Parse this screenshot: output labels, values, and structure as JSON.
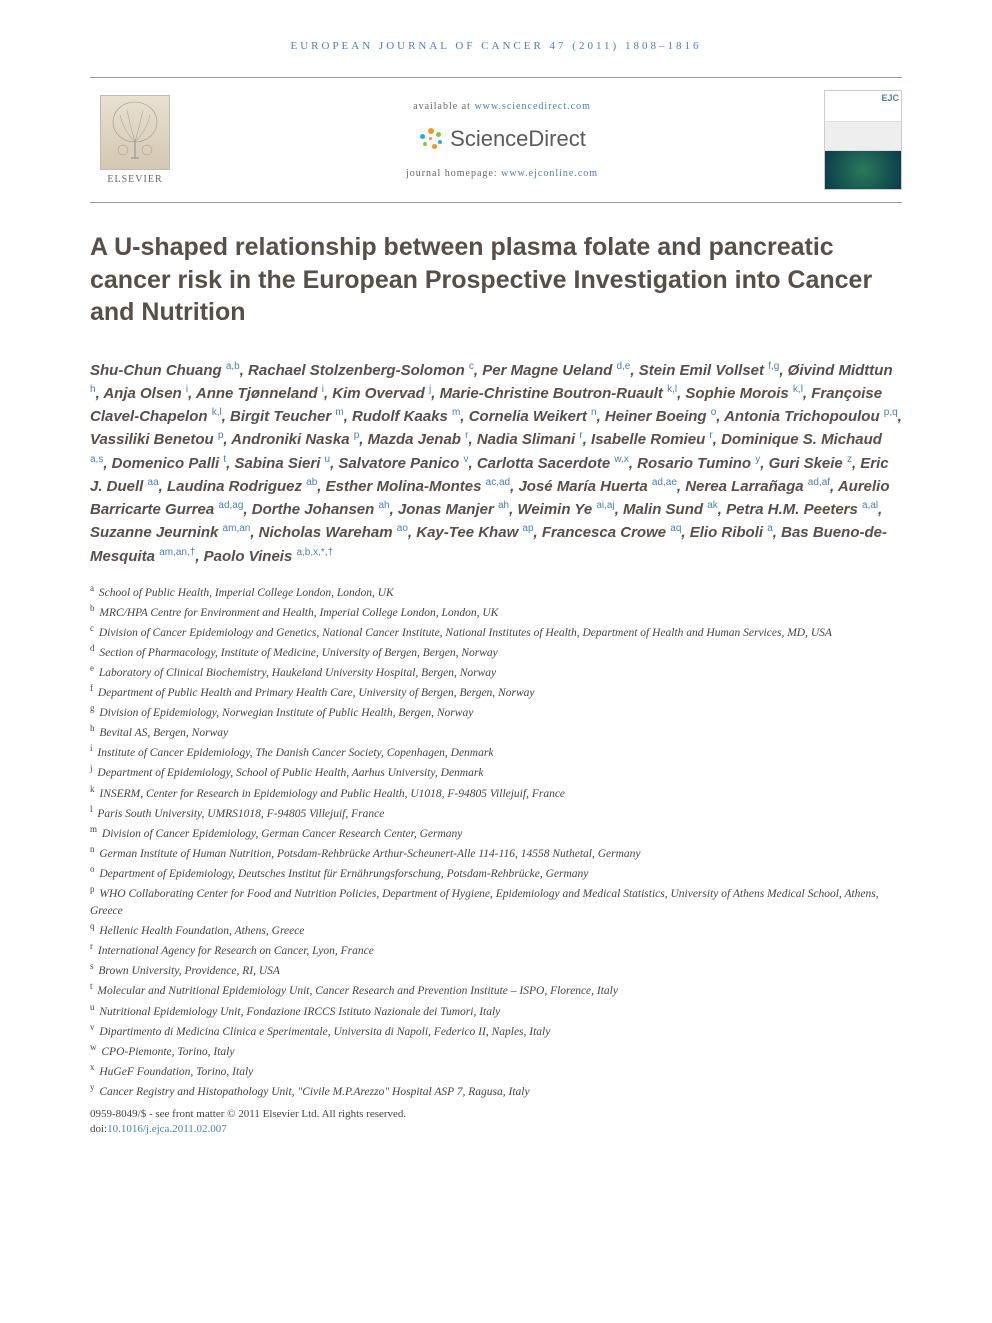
{
  "header": {
    "citation": "EUROPEAN JOURNAL OF CANCER 47 (2011) 1808–1816",
    "available_prefix": "available at ",
    "available_url": "www.sciencedirect.com",
    "sciencedirect_label": "ScienceDirect",
    "homepage_prefix": "journal homepage: ",
    "homepage_url": "www.ejconline.com",
    "elsevier_label": "ELSEVIER",
    "cover_label": "EJC"
  },
  "title": "A U-shaped relationship between plasma folate and pancreatic cancer risk in the European Prospective Investigation into Cancer and Nutrition",
  "authors_html": "Shu-Chun Chuang <sup>a,b</sup>, Rachael Stolzenberg-Solomon <sup>c</sup>, Per Magne Ueland <sup>d,e</sup>, Stein Emil Vollset <sup>f,g</sup>, Øivind Midttun <sup>h</sup>, Anja Olsen <sup>i</sup>, Anne Tjønneland <sup>i</sup>, Kim Overvad <sup>j</sup>, Marie-Christine Boutron-Ruault <sup>k,l</sup>, Sophie Morois <sup>k,l</sup>, Françoise Clavel-Chapelon <sup>k,l</sup>, Birgit Teucher <sup>m</sup>, Rudolf Kaaks <sup>m</sup>, Cornelia Weikert <sup>n</sup>, Heiner Boeing <sup>o</sup>, Antonia Trichopoulou <sup>p,q</sup>, Vassiliki Benetou <sup>p</sup>, Androniki Naska <sup>p</sup>, Mazda Jenab <sup>r</sup>, Nadia Slimani <sup>r</sup>, Isabelle Romieu <sup>r</sup>, Dominique S. Michaud <sup>a,s</sup>, Domenico Palli <sup>t</sup>, Sabina Sieri <sup>u</sup>, Salvatore Panico <sup>v</sup>, Carlotta Sacerdote <sup>w,x</sup>, Rosario Tumino <sup>y</sup>, Guri Skeie <sup>z</sup>, Eric J. Duell <sup>aa</sup>, Laudina Rodriguez <sup>ab</sup>, Esther Molina-Montes <sup>ac,ad</sup>, José María Huerta <sup>ad,ae</sup>, Nerea Larrañaga <sup>ad,af</sup>, Aurelio Barricarte Gurrea <sup>ad,ag</sup>, Dorthe Johansen <sup>ah</sup>, Jonas Manjer <sup>ah</sup>, Weimin Ye <sup>ai,aj</sup>, Malin Sund <sup>ak</sup>, Petra H.M. Peeters <sup>a,al</sup>, Suzanne Jeurnink <sup>am,an</sup>, Nicholas Wareham <sup>ao</sup>, Kay-Tee Khaw <sup>ap</sup>, Francesca Crowe <sup>aq</sup>, Elio Riboli <sup>a</sup>, Bas Bueno-de-Mesquita <sup>am,an,†</sup>, Paolo Vineis <sup>a,b,x,*,†</sup>",
  "affiliations": [
    {
      "key": "a",
      "text": "School of Public Health, Imperial College London, London, UK"
    },
    {
      "key": "b",
      "text": "MRC/HPA Centre for Environment and Health, Imperial College London, London, UK"
    },
    {
      "key": "c",
      "text": "Division of Cancer Epidemiology and Genetics, National Cancer Institute, National Institutes of Health, Department of Health and Human Services, MD, USA"
    },
    {
      "key": "d",
      "text": "Section of Pharmacology, Institute of Medicine, University of Bergen, Bergen, Norway"
    },
    {
      "key": "e",
      "text": "Laboratory of Clinical Biochemistry, Haukeland University Hospital, Bergen, Norway"
    },
    {
      "key": "f",
      "text": "Department of Public Health and Primary Health Care, University of Bergen, Bergen, Norway"
    },
    {
      "key": "g",
      "text": "Division of Epidemiology, Norwegian Institute of Public Health, Bergen, Norway"
    },
    {
      "key": "h",
      "text": "Bevital AS, Bergen, Norway"
    },
    {
      "key": "i",
      "text": "Institute of Cancer Epidemiology, The Danish Cancer Society, Copenhagen, Denmark"
    },
    {
      "key": "j",
      "text": "Department of Epidemiology, School of Public Health, Aarhus University, Denmark"
    },
    {
      "key": "k",
      "text": "INSERM, Center for Research in Epidemiology and Public Health, U1018, F-94805 Villejuif, France"
    },
    {
      "key": "l",
      "text": "Paris South University, UMRS1018, F-94805 Villejuif, France"
    },
    {
      "key": "m",
      "text": "Division of Cancer Epidemiology, German Cancer Research Center, Germany"
    },
    {
      "key": "n",
      "text": "German Institute of Human Nutrition, Potsdam-Rehbrücke Arthur-Scheunert-Alle 114-116, 14558 Nuthetal, Germany"
    },
    {
      "key": "o",
      "text": "Department of Epidemiology, Deutsches Institut für Ernährungsforschung, Potsdam-Rehbrücke, Germany"
    },
    {
      "key": "p",
      "text": "WHO Collaborating Center for Food and Nutrition Policies, Department of Hygiene, Epidemiology and Medical Statistics, University of Athens Medical School, Athens, Greece"
    },
    {
      "key": "q",
      "text": "Hellenic Health Foundation, Athens, Greece"
    },
    {
      "key": "r",
      "text": "International Agency for Research on Cancer, Lyon, France"
    },
    {
      "key": "s",
      "text": "Brown University, Providence, RI, USA"
    },
    {
      "key": "t",
      "text": "Molecular and Nutritional Epidemiology Unit, Cancer Research and Prevention Institute – ISPO, Florence, Italy"
    },
    {
      "key": "u",
      "text": "Nutritional Epidemiology Unit, Fondazione IRCCS Istituto Nazionale dei Tumori, Italy"
    },
    {
      "key": "v",
      "text": "Dipartimento di Medicina Clinica e Sperimentale, Universita di Napoli, Federico II, Naples, Italy"
    },
    {
      "key": "w",
      "text": "CPO-Piemonte, Torino, Italy"
    },
    {
      "key": "x",
      "text": "HuGeF Foundation, Torino, Italy"
    },
    {
      "key": "y",
      "text": "Cancer Registry and Histopathology Unit, \"Civile M.P.Arezzo\" Hospital ASP 7, Ragusa, Italy"
    }
  ],
  "footer": {
    "issn_line": "0959-8049/$ - see front matter © 2011 Elsevier Ltd. All rights reserved.",
    "doi_prefix": "doi:",
    "doi": "10.1016/j.ejca.2011.02.007"
  },
  "colors": {
    "link": "#4a7fb5",
    "title": "#585048",
    "text": "#333333",
    "sd_orange": "#f7941e",
    "sd_green": "#8bc53f",
    "sd_blue": "#29abe2"
  }
}
